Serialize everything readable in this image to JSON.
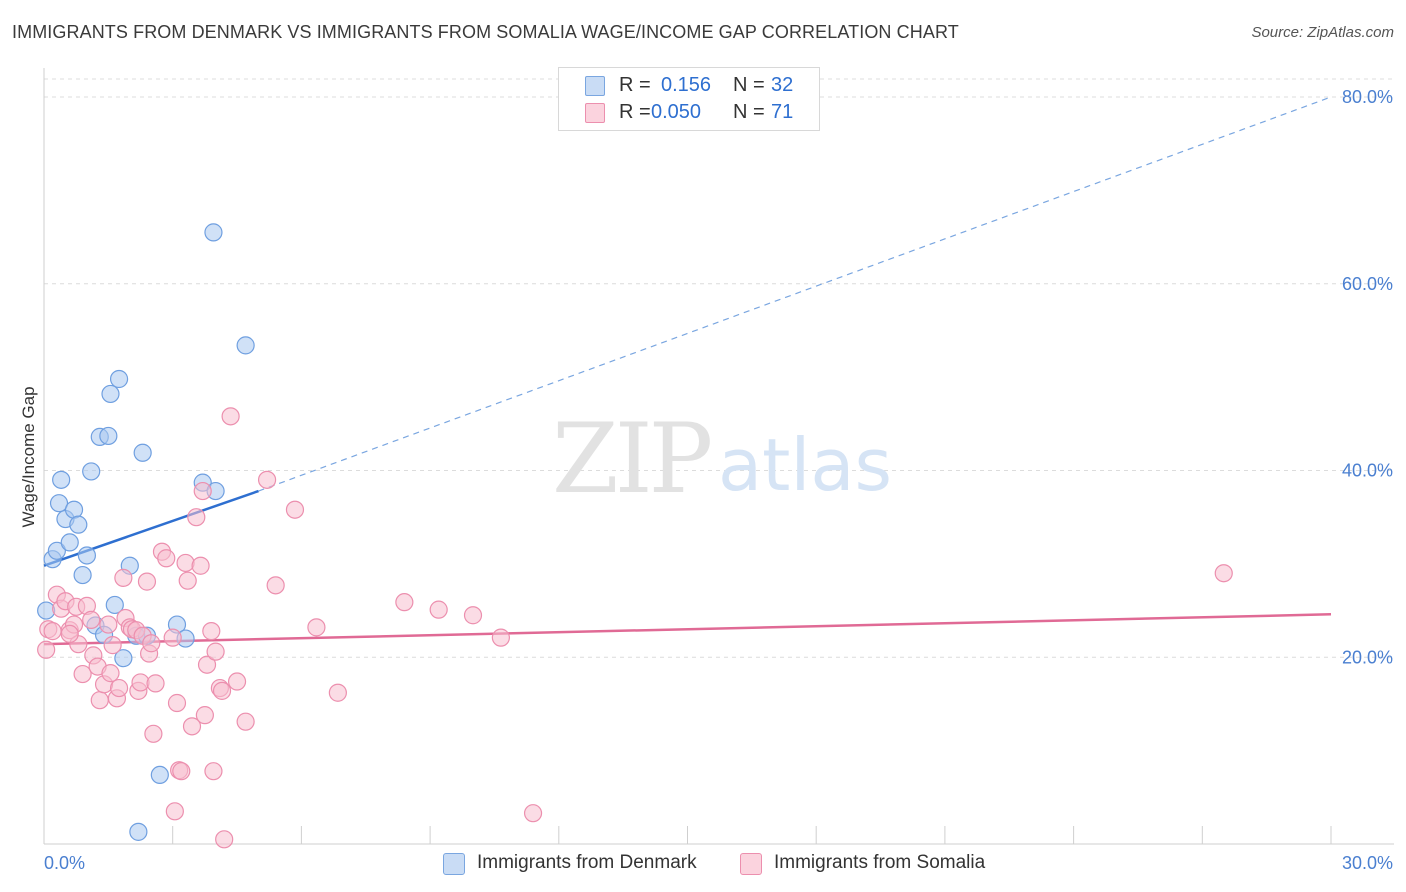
{
  "header": {
    "title": "IMMIGRANTS FROM DENMARK VS IMMIGRANTS FROM SOMALIA WAGE/INCOME GAP CORRELATION CHART",
    "source": "Source: ZipAtlas.com"
  },
  "watermark": {
    "zip": "ZIP",
    "atlas": "atlas"
  },
  "legend": {
    "r_label": "R =",
    "n_label": "N =",
    "rows": [
      {
        "r": "0.156",
        "n": "32",
        "color": "#a9c8f0",
        "border": "#7aa6e0"
      },
      {
        "r": "0.050",
        "n": "71",
        "color": "#f7c0d0",
        "border": "#ec8fae"
      }
    ]
  },
  "chart_data": {
    "type": "scatter",
    "title": "IMMIGRANTS FROM DENMARK VS IMMIGRANTS FROM SOMALIA WAGE/INCOME GAP CORRELATION CHART",
    "xlabel": "",
    "ylabel": "Wage/Income Gap",
    "xlim": [
      0,
      30
    ],
    "ylim": [
      0,
      80
    ],
    "x_tick_labels": [
      "0.0%",
      "30.0%"
    ],
    "y_tick_labels": [
      "20.0%",
      "40.0%",
      "60.0%",
      "80.0%"
    ],
    "y_ticks": [
      20,
      40,
      60,
      80
    ],
    "grid": true,
    "legend_position": "top-center",
    "series": [
      {
        "name": "Immigrants from Denmark",
        "color": "#a9c8f0",
        "stroke": "#6f9fe0",
        "points": [
          [
            0.2,
            30.5
          ],
          [
            0.3,
            31.4
          ],
          [
            0.35,
            36.5
          ],
          [
            0.4,
            39
          ],
          [
            0.5,
            34.8
          ],
          [
            0.6,
            32.3
          ],
          [
            0.7,
            35.8
          ],
          [
            0.8,
            34.2
          ],
          [
            0.9,
            28.8
          ],
          [
            1.0,
            30.9
          ],
          [
            1.1,
            39.9
          ],
          [
            1.2,
            23.4
          ],
          [
            1.3,
            43.6
          ],
          [
            1.4,
            22.4
          ],
          [
            1.5,
            43.7
          ],
          [
            1.55,
            48.2
          ],
          [
            1.65,
            25.6
          ],
          [
            1.75,
            49.8
          ],
          [
            1.85,
            19.9
          ],
          [
            2.0,
            29.8
          ],
          [
            2.15,
            22.3
          ],
          [
            2.3,
            41.9
          ],
          [
            2.4,
            22.3
          ],
          [
            2.7,
            7.4
          ],
          [
            3.1,
            23.5
          ],
          [
            3.3,
            22.0
          ],
          [
            3.7,
            38.7
          ],
          [
            3.95,
            65.5
          ],
          [
            4.0,
            37.8
          ],
          [
            4.7,
            53.4
          ],
          [
            2.2,
            1.3
          ],
          [
            0.05,
            25.0
          ]
        ]
      },
      {
        "name": "Immigrants from Somalia",
        "color": "#f7c0d0",
        "stroke": "#ec8fae",
        "points": [
          [
            0.05,
            20.8
          ],
          [
            0.1,
            23.0
          ],
          [
            0.2,
            22.8
          ],
          [
            0.3,
            26.7
          ],
          [
            0.4,
            25.2
          ],
          [
            0.5,
            26.0
          ],
          [
            0.6,
            22.9
          ],
          [
            0.7,
            23.5
          ],
          [
            0.75,
            25.4
          ],
          [
            0.8,
            21.4
          ],
          [
            0.9,
            18.2
          ],
          [
            1.0,
            25.5
          ],
          [
            1.1,
            24.0
          ],
          [
            1.15,
            20.2
          ],
          [
            1.25,
            19.0
          ],
          [
            1.3,
            15.4
          ],
          [
            1.4,
            17.1
          ],
          [
            1.5,
            23.5
          ],
          [
            1.55,
            18.3
          ],
          [
            1.6,
            21.3
          ],
          [
            1.7,
            15.6
          ],
          [
            1.75,
            16.7
          ],
          [
            1.85,
            28.5
          ],
          [
            1.9,
            24.2
          ],
          [
            2.0,
            23.2
          ],
          [
            2.05,
            23.0
          ],
          [
            2.15,
            22.9
          ],
          [
            2.2,
            16.4
          ],
          [
            2.25,
            17.3
          ],
          [
            2.3,
            22.3
          ],
          [
            2.4,
            28.1
          ],
          [
            2.45,
            20.4
          ],
          [
            2.5,
            21.5
          ],
          [
            2.55,
            11.8
          ],
          [
            2.6,
            17.2
          ],
          [
            2.75,
            31.3
          ],
          [
            2.85,
            30.6
          ],
          [
            3.0,
            22.1
          ],
          [
            3.05,
            3.5
          ],
          [
            3.1,
            15.1
          ],
          [
            3.15,
            7.9
          ],
          [
            3.2,
            7.8
          ],
          [
            3.3,
            30.1
          ],
          [
            3.35,
            28.2
          ],
          [
            3.45,
            12.6
          ],
          [
            3.55,
            35.0
          ],
          [
            3.65,
            29.8
          ],
          [
            3.7,
            37.8
          ],
          [
            3.8,
            19.2
          ],
          [
            3.9,
            22.8
          ],
          [
            3.95,
            7.8
          ],
          [
            4.0,
            20.6
          ],
          [
            4.1,
            16.7
          ],
          [
            4.15,
            16.4
          ],
          [
            4.2,
            0.5
          ],
          [
            4.35,
            45.8
          ],
          [
            4.5,
            17.4
          ],
          [
            4.7,
            13.1
          ],
          [
            5.2,
            39.0
          ],
          [
            5.4,
            27.7
          ],
          [
            5.85,
            35.8
          ],
          [
            6.35,
            23.2
          ],
          [
            6.85,
            16.2
          ],
          [
            3.75,
            13.8
          ],
          [
            8.4,
            25.9
          ],
          [
            9.2,
            25.1
          ],
          [
            10.0,
            24.5
          ],
          [
            10.65,
            22.1
          ],
          [
            11.4,
            3.3
          ],
          [
            27.5,
            29.0
          ],
          [
            0.6,
            22.5
          ]
        ]
      }
    ],
    "trend_lines": [
      {
        "series": "Immigrants from Denmark",
        "x": [
          0,
          5.0
        ],
        "y": [
          29.8,
          37.8
        ],
        "extended_x": [
          5.0,
          30
        ],
        "extended_y": [
          37.8,
          80.0
        ]
      },
      {
        "series": "Immigrants from Somalia",
        "x": [
          0,
          30
        ],
        "y": [
          21.4,
          24.6
        ]
      }
    ]
  }
}
